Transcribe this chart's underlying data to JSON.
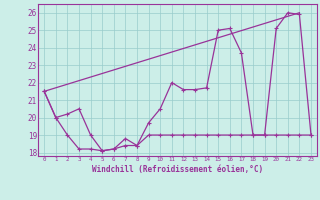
{
  "xlabel": "Windchill (Refroidissement éolien,°C)",
  "background_color": "#cceee8",
  "line_color": "#993399",
  "grid_color": "#99cccc",
  "hours": [
    0,
    1,
    2,
    3,
    4,
    5,
    6,
    7,
    8,
    9,
    10,
    11,
    12,
    13,
    14,
    15,
    16,
    17,
    18,
    19,
    20,
    21,
    22,
    23
  ],
  "line1": [
    21.5,
    20.0,
    20.2,
    20.5,
    19.0,
    18.1,
    18.2,
    18.4,
    18.4,
    19.7,
    20.5,
    22.0,
    21.6,
    21.6,
    21.7,
    25.0,
    25.1,
    23.7,
    19.0,
    19.0,
    25.1,
    26.0,
    25.9,
    19.0
  ],
  "line2": [
    21.5,
    20.0,
    19.0,
    18.2,
    18.2,
    18.1,
    18.2,
    18.8,
    18.4,
    19.0,
    19.0,
    19.0,
    19.0,
    19.0,
    19.0,
    19.0,
    19.0,
    19.0,
    19.0,
    19.0,
    19.0,
    19.0,
    19.0,
    19.0
  ],
  "line3_x": [
    0,
    22
  ],
  "line3_y": [
    21.5,
    26.0
  ],
  "ylim": [
    17.8,
    26.5
  ],
  "xlim": [
    -0.5,
    23.5
  ],
  "yticks": [
    18,
    19,
    20,
    21,
    22,
    23,
    24,
    25,
    26
  ],
  "xticks": [
    0,
    1,
    2,
    3,
    4,
    5,
    6,
    7,
    8,
    9,
    10,
    11,
    12,
    13,
    14,
    15,
    16,
    17,
    18,
    19,
    20,
    21,
    22,
    23
  ]
}
